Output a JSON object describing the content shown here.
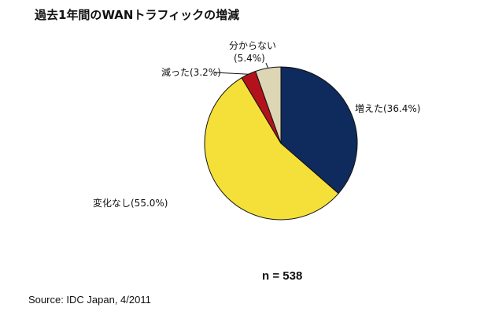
{
  "chart_data": {
    "type": "pie",
    "title": "過去1年間のWANトラフィックの増減",
    "slices": [
      {
        "label": "増えた",
        "value": 36.4,
        "display": "増えた(36.4%)",
        "color": "#0f2a5c"
      },
      {
        "label": "変化なし",
        "value": 55.0,
        "display": "変化なし(55.0%)",
        "color": "#f5e03a"
      },
      {
        "label": "減った",
        "value": 3.2,
        "display": "減った(3.2%)",
        "color": "#b3121c"
      },
      {
        "label": "分からない",
        "value": 5.4,
        "display_line1": "分からない",
        "display_line2": "(5.4%)",
        "color": "#ddd6b4"
      }
    ],
    "start_angle_deg": 0,
    "direction": "clockwise"
  },
  "sample_size": "n = 538",
  "source": "Source: IDC Japan, 4/2011"
}
